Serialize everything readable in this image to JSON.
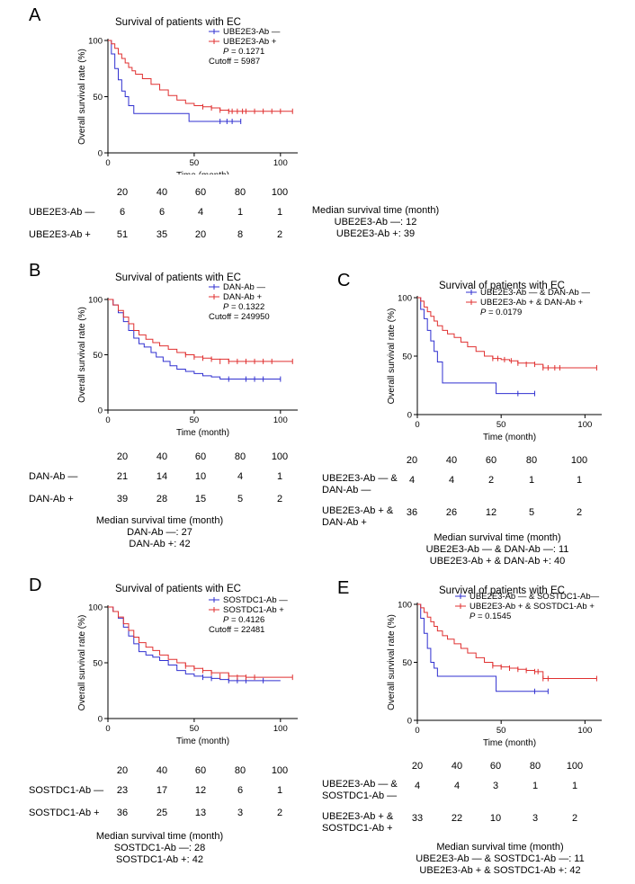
{
  "colors": {
    "neg": "#3030d0",
    "pos": "#e03030",
    "axis": "#000000"
  },
  "chart_data": [
    {
      "panel": "A",
      "type": "line",
      "title": "Survival of patients with EC",
      "xlabel": "Time (month)",
      "ylabel": "Overall survival rate (%)",
      "xlim": [
        0,
        110
      ],
      "ylim": [
        0,
        100
      ],
      "xticks": [
        0,
        50,
        100
      ],
      "yticks": [
        0,
        50,
        100
      ],
      "legend": [
        "UBE2E3-Ab —",
        "UBE2E3-Ab +",
        "P = 0.1271",
        "Cutoff = 5987"
      ],
      "series": [
        {
          "name": "UBE2E3-Ab —",
          "key": "neg",
          "x": [
            0,
            2,
            4,
            6,
            8,
            10,
            12,
            15,
            18,
            47,
            60,
            77
          ],
          "y": [
            100,
            88,
            75,
            65,
            55,
            50,
            42,
            35,
            35,
            28,
            28,
            28
          ],
          "censor": [
            [
              65,
              28
            ],
            [
              69,
              28
            ],
            [
              72,
              28
            ],
            [
              77,
              28
            ]
          ]
        },
        {
          "name": "UBE2E3-Ab +",
          "key": "pos",
          "x": [
            0,
            2,
            4,
            6,
            8,
            10,
            12,
            14,
            16,
            20,
            25,
            30,
            35,
            40,
            45,
            50,
            55,
            60,
            65,
            70,
            75,
            80,
            90,
            107
          ],
          "y": [
            100,
            97,
            93,
            88,
            84,
            80,
            76,
            73,
            70,
            66,
            61,
            56,
            51,
            47,
            44,
            42,
            41,
            40,
            38,
            37,
            37,
            37,
            37,
            37
          ],
          "censor": [
            [
              55,
              41
            ],
            [
              60,
              40
            ],
            [
              65,
              38
            ],
            [
              70,
              37
            ],
            [
              72,
              37
            ],
            [
              75,
              37
            ],
            [
              78,
              37
            ],
            [
              80,
              37
            ],
            [
              85,
              37
            ],
            [
              90,
              37
            ],
            [
              95,
              37
            ],
            [
              100,
              37
            ],
            [
              107,
              37
            ]
          ]
        }
      ],
      "risk_table": {
        "times": [
          "20",
          "40",
          "60",
          "80",
          "100"
        ],
        "rows": [
          {
            "label": "UBE2E3-Ab —",
            "values": [
              "6",
              "6",
              "4",
              "1",
              "1"
            ]
          },
          {
            "label": "UBE2E3-Ab +",
            "values": [
              "51",
              "35",
              "20",
              "8",
              "2"
            ]
          }
        ]
      },
      "median": {
        "title": "Median survival time (month)",
        "lines": [
          "UBE2E3-Ab —: 12",
          "UBE2E3-Ab +: 39"
        ]
      }
    },
    {
      "panel": "B",
      "type": "line",
      "title": "Survival of patients with EC",
      "xlabel": "Time (month)",
      "ylabel": "Overall survival rate (%)",
      "xlim": [
        0,
        110
      ],
      "ylim": [
        0,
        100
      ],
      "xticks": [
        0,
        50,
        100
      ],
      "yticks": [
        0,
        50,
        100
      ],
      "legend": [
        "DAN-Ab —",
        "DAN-Ab +",
        "P = 0.1322",
        "Cutoff = 249950"
      ],
      "series": [
        {
          "name": "DAN-Ab —",
          "key": "neg",
          "x": [
            0,
            3,
            6,
            9,
            12,
            15,
            18,
            21,
            25,
            28,
            32,
            36,
            40,
            45,
            50,
            55,
            60,
            65,
            70,
            80,
            90,
            100
          ],
          "y": [
            100,
            95,
            88,
            80,
            72,
            65,
            60,
            57,
            52,
            48,
            44,
            40,
            37,
            35,
            33,
            31,
            30,
            28,
            28,
            28,
            28,
            28
          ],
          "censor": [
            [
              70,
              28
            ],
            [
              80,
              28
            ],
            [
              85,
              28
            ],
            [
              90,
              28
            ],
            [
              100,
              28
            ]
          ]
        },
        {
          "name": "DAN-Ab +",
          "key": "pos",
          "x": [
            0,
            3,
            6,
            9,
            12,
            15,
            18,
            22,
            26,
            30,
            35,
            40,
            45,
            50,
            55,
            60,
            70,
            80,
            90,
            107
          ],
          "y": [
            100,
            95,
            90,
            84,
            78,
            72,
            68,
            64,
            61,
            58,
            55,
            52,
            50,
            48,
            47,
            46,
            44,
            44,
            44,
            44
          ],
          "censor": [
            [
              45,
              50
            ],
            [
              50,
              48
            ],
            [
              55,
              47
            ],
            [
              60,
              46
            ],
            [
              65,
              44
            ],
            [
              70,
              44
            ],
            [
              75,
              44
            ],
            [
              80,
              44
            ],
            [
              85,
              44
            ],
            [
              90,
              44
            ],
            [
              95,
              44
            ],
            [
              107,
              44
            ]
          ]
        }
      ],
      "risk_table": {
        "times": [
          "20",
          "40",
          "60",
          "80",
          "100"
        ],
        "rows": [
          {
            "label": "DAN-Ab —",
            "values": [
              "21",
              "14",
              "10",
              "4",
              "1"
            ]
          },
          {
            "label": "DAN-Ab +",
            "values": [
              "39",
              "28",
              "15",
              "5",
              "2"
            ]
          }
        ]
      },
      "median": {
        "title": "Median survival time (month)",
        "lines": [
          "DAN-Ab —: 27",
          "DAN-Ab +: 42"
        ]
      }
    },
    {
      "panel": "C",
      "type": "line",
      "title": "Survival of patients with EC",
      "xlabel": "Time (month)",
      "ylabel": "Overall survival rate (%)",
      "xlim": [
        0,
        110
      ],
      "ylim": [
        0,
        100
      ],
      "xticks": [
        0,
        50,
        100
      ],
      "yticks": [
        0,
        50,
        100
      ],
      "legend": [
        "UBE2E3-Ab — & DAN-Ab —",
        "UBE2E3-Ab + & DAN-Ab +",
        "P = 0.0179"
      ],
      "series": [
        {
          "name": "UBE2E3-Ab — & DAN-Ab —",
          "key": "neg",
          "x": [
            0,
            2,
            4,
            6,
            8,
            10,
            12,
            15,
            47,
            70
          ],
          "y": [
            100,
            90,
            82,
            72,
            63,
            54,
            45,
            27,
            18,
            18
          ],
          "censor": [
            [
              60,
              18
            ],
            [
              70,
              18
            ]
          ]
        },
        {
          "name": "UBE2E3-Ab + & DAN-Ab +",
          "key": "pos",
          "x": [
            0,
            2,
            4,
            6,
            8,
            10,
            12,
            15,
            18,
            22,
            26,
            30,
            35,
            40,
            45,
            50,
            55,
            60,
            70,
            75,
            80,
            107
          ],
          "y": [
            100,
            97,
            92,
            88,
            84,
            80,
            76,
            72,
            69,
            66,
            62,
            58,
            54,
            50,
            48,
            47,
            46,
            44,
            43,
            40,
            40,
            40
          ],
          "censor": [
            [
              45,
              48
            ],
            [
              48,
              48
            ],
            [
              52,
              47
            ],
            [
              56,
              46
            ],
            [
              60,
              44
            ],
            [
              65,
              43
            ],
            [
              70,
              43
            ],
            [
              75,
              40
            ],
            [
              78,
              40
            ],
            [
              82,
              40
            ],
            [
              85,
              40
            ],
            [
              107,
              40
            ]
          ]
        }
      ],
      "risk_table": {
        "times": [
          "20",
          "40",
          "60",
          "80",
          "100"
        ],
        "rows": [
          {
            "label": "UBE2E3-Ab — &\nDAN-Ab —",
            "values": [
              "4",
              "4",
              "2",
              "1",
              "1"
            ]
          },
          {
            "label": "UBE2E3-Ab + &\nDAN-Ab +",
            "values": [
              "36",
              "26",
              "12",
              "5",
              "2"
            ]
          }
        ]
      },
      "median": {
        "title": "Median survival time (month)",
        "lines": [
          "UBE2E3-Ab — & DAN-Ab —: 11",
          "UBE2E3-Ab + & DAN-Ab +: 40"
        ]
      }
    },
    {
      "panel": "D",
      "type": "line",
      "title": "Survival of patients with EC",
      "xlabel": "Time (month)",
      "ylabel": "Overall survival rate (%)",
      "xlim": [
        0,
        110
      ],
      "ylim": [
        0,
        100
      ],
      "xticks": [
        0,
        50,
        100
      ],
      "yticks": [
        0,
        50,
        100
      ],
      "legend": [
        "SOSTDC1-Ab —",
        "SOSTDC1-Ab +",
        "P = 0.4126",
        "Cutoff = 22481"
      ],
      "series": [
        {
          "name": "SOSTDC1-Ab —",
          "key": "neg",
          "x": [
            0,
            3,
            6,
            9,
            12,
            15,
            18,
            22,
            26,
            30,
            35,
            40,
            45,
            50,
            55,
            60,
            65,
            70,
            80,
            90,
            100
          ],
          "y": [
            100,
            96,
            90,
            82,
            74,
            67,
            60,
            57,
            55,
            52,
            48,
            43,
            40,
            38,
            37,
            36,
            35,
            34,
            34,
            34,
            34
          ],
          "censor": [
            [
              55,
              37
            ],
            [
              60,
              36
            ],
            [
              70,
              34
            ],
            [
              75,
              34
            ],
            [
              80,
              34
            ],
            [
              90,
              34
            ]
          ]
        },
        {
          "name": "SOSTDC1-Ab +",
          "key": "pos",
          "x": [
            0,
            3,
            6,
            9,
            12,
            15,
            18,
            22,
            26,
            30,
            35,
            40,
            45,
            50,
            55,
            60,
            70,
            80,
            90,
            107
          ],
          "y": [
            100,
            96,
            91,
            85,
            79,
            73,
            68,
            64,
            61,
            57,
            53,
            50,
            47,
            45,
            43,
            41,
            38,
            37,
            37,
            37
          ],
          "censor": [
            [
              45,
              47
            ],
            [
              50,
              45
            ],
            [
              55,
              43
            ],
            [
              60,
              41
            ],
            [
              65,
              38
            ],
            [
              70,
              38
            ],
            [
              75,
              37
            ],
            [
              80,
              37
            ],
            [
              85,
              37
            ],
            [
              107,
              37
            ]
          ]
        }
      ],
      "risk_table": {
        "times": [
          "20",
          "40",
          "60",
          "80",
          "100"
        ],
        "rows": [
          {
            "label": "SOSTDC1-Ab —",
            "values": [
              "23",
              "17",
              "12",
              "6",
              "1"
            ]
          },
          {
            "label": "SOSTDC1-Ab +",
            "values": [
              "36",
              "25",
              "13",
              "3",
              "2"
            ]
          }
        ]
      },
      "median": {
        "title": "Median survival time (month)",
        "lines": [
          "SOSTDC1-Ab —: 28",
          "SOSTDC1-Ab +: 42"
        ]
      }
    },
    {
      "panel": "E",
      "type": "line",
      "title": "Survival of patients with EC",
      "xlabel": "Time (month)",
      "ylabel": "Overall survival rate (%)",
      "xlim": [
        0,
        110
      ],
      "ylim": [
        0,
        100
      ],
      "xticks": [
        0,
        50,
        100
      ],
      "yticks": [
        0,
        50,
        100
      ],
      "legend": [
        "UBE2E3-Ab — & SOSTDC1-Ab—",
        "UBE2E3-Ab + & SOSTDC1-Ab +",
        "P = 0.1545"
      ],
      "series": [
        {
          "name": "UBE2E3-Ab — & SOSTDC1-Ab—",
          "key": "neg",
          "x": [
            0,
            2,
            4,
            6,
            8,
            10,
            12,
            47,
            75,
            78
          ],
          "y": [
            100,
            88,
            75,
            62,
            50,
            45,
            38,
            25,
            25,
            25
          ],
          "censor": [
            [
              70,
              25
            ],
            [
              78,
              25
            ]
          ]
        },
        {
          "name": "UBE2E3-Ab + & SOSTDC1-Ab +",
          "key": "pos",
          "x": [
            0,
            2,
            4,
            6,
            8,
            10,
            12,
            15,
            18,
            22,
            26,
            30,
            35,
            40,
            45,
            50,
            55,
            60,
            65,
            70,
            75,
            80,
            107
          ],
          "y": [
            100,
            97,
            93,
            89,
            85,
            81,
            77,
            73,
            70,
            66,
            62,
            58,
            54,
            50,
            47,
            46,
            45,
            44,
            43,
            42,
            36,
            36,
            36
          ],
          "censor": [
            [
              45,
              47
            ],
            [
              50,
              46
            ],
            [
              55,
              45
            ],
            [
              60,
              44
            ],
            [
              65,
              43
            ],
            [
              70,
              42
            ],
            [
              72,
              42
            ],
            [
              75,
              36
            ],
            [
              78,
              36
            ],
            [
              107,
              36
            ]
          ]
        }
      ],
      "risk_table": {
        "times": [
          "20",
          "40",
          "60",
          "80",
          "100"
        ],
        "rows": [
          {
            "label": "UBE2E3-Ab — &\nSOSTDC1-Ab —",
            "values": [
              "4",
              "4",
              "3",
              "1",
              "1"
            ]
          },
          {
            "label": "UBE2E3-Ab + &\nSOSTDC1-Ab +",
            "values": [
              "33",
              "22",
              "10",
              "3",
              "2"
            ]
          }
        ]
      },
      "median": {
        "title": "Median survival time (month)",
        "lines": [
          "UBE2E3-Ab — & SOSTDC1-Ab —: 11",
          "UBE2E3-Ab + & SOSTDC1-Ab +: 42"
        ]
      }
    }
  ]
}
